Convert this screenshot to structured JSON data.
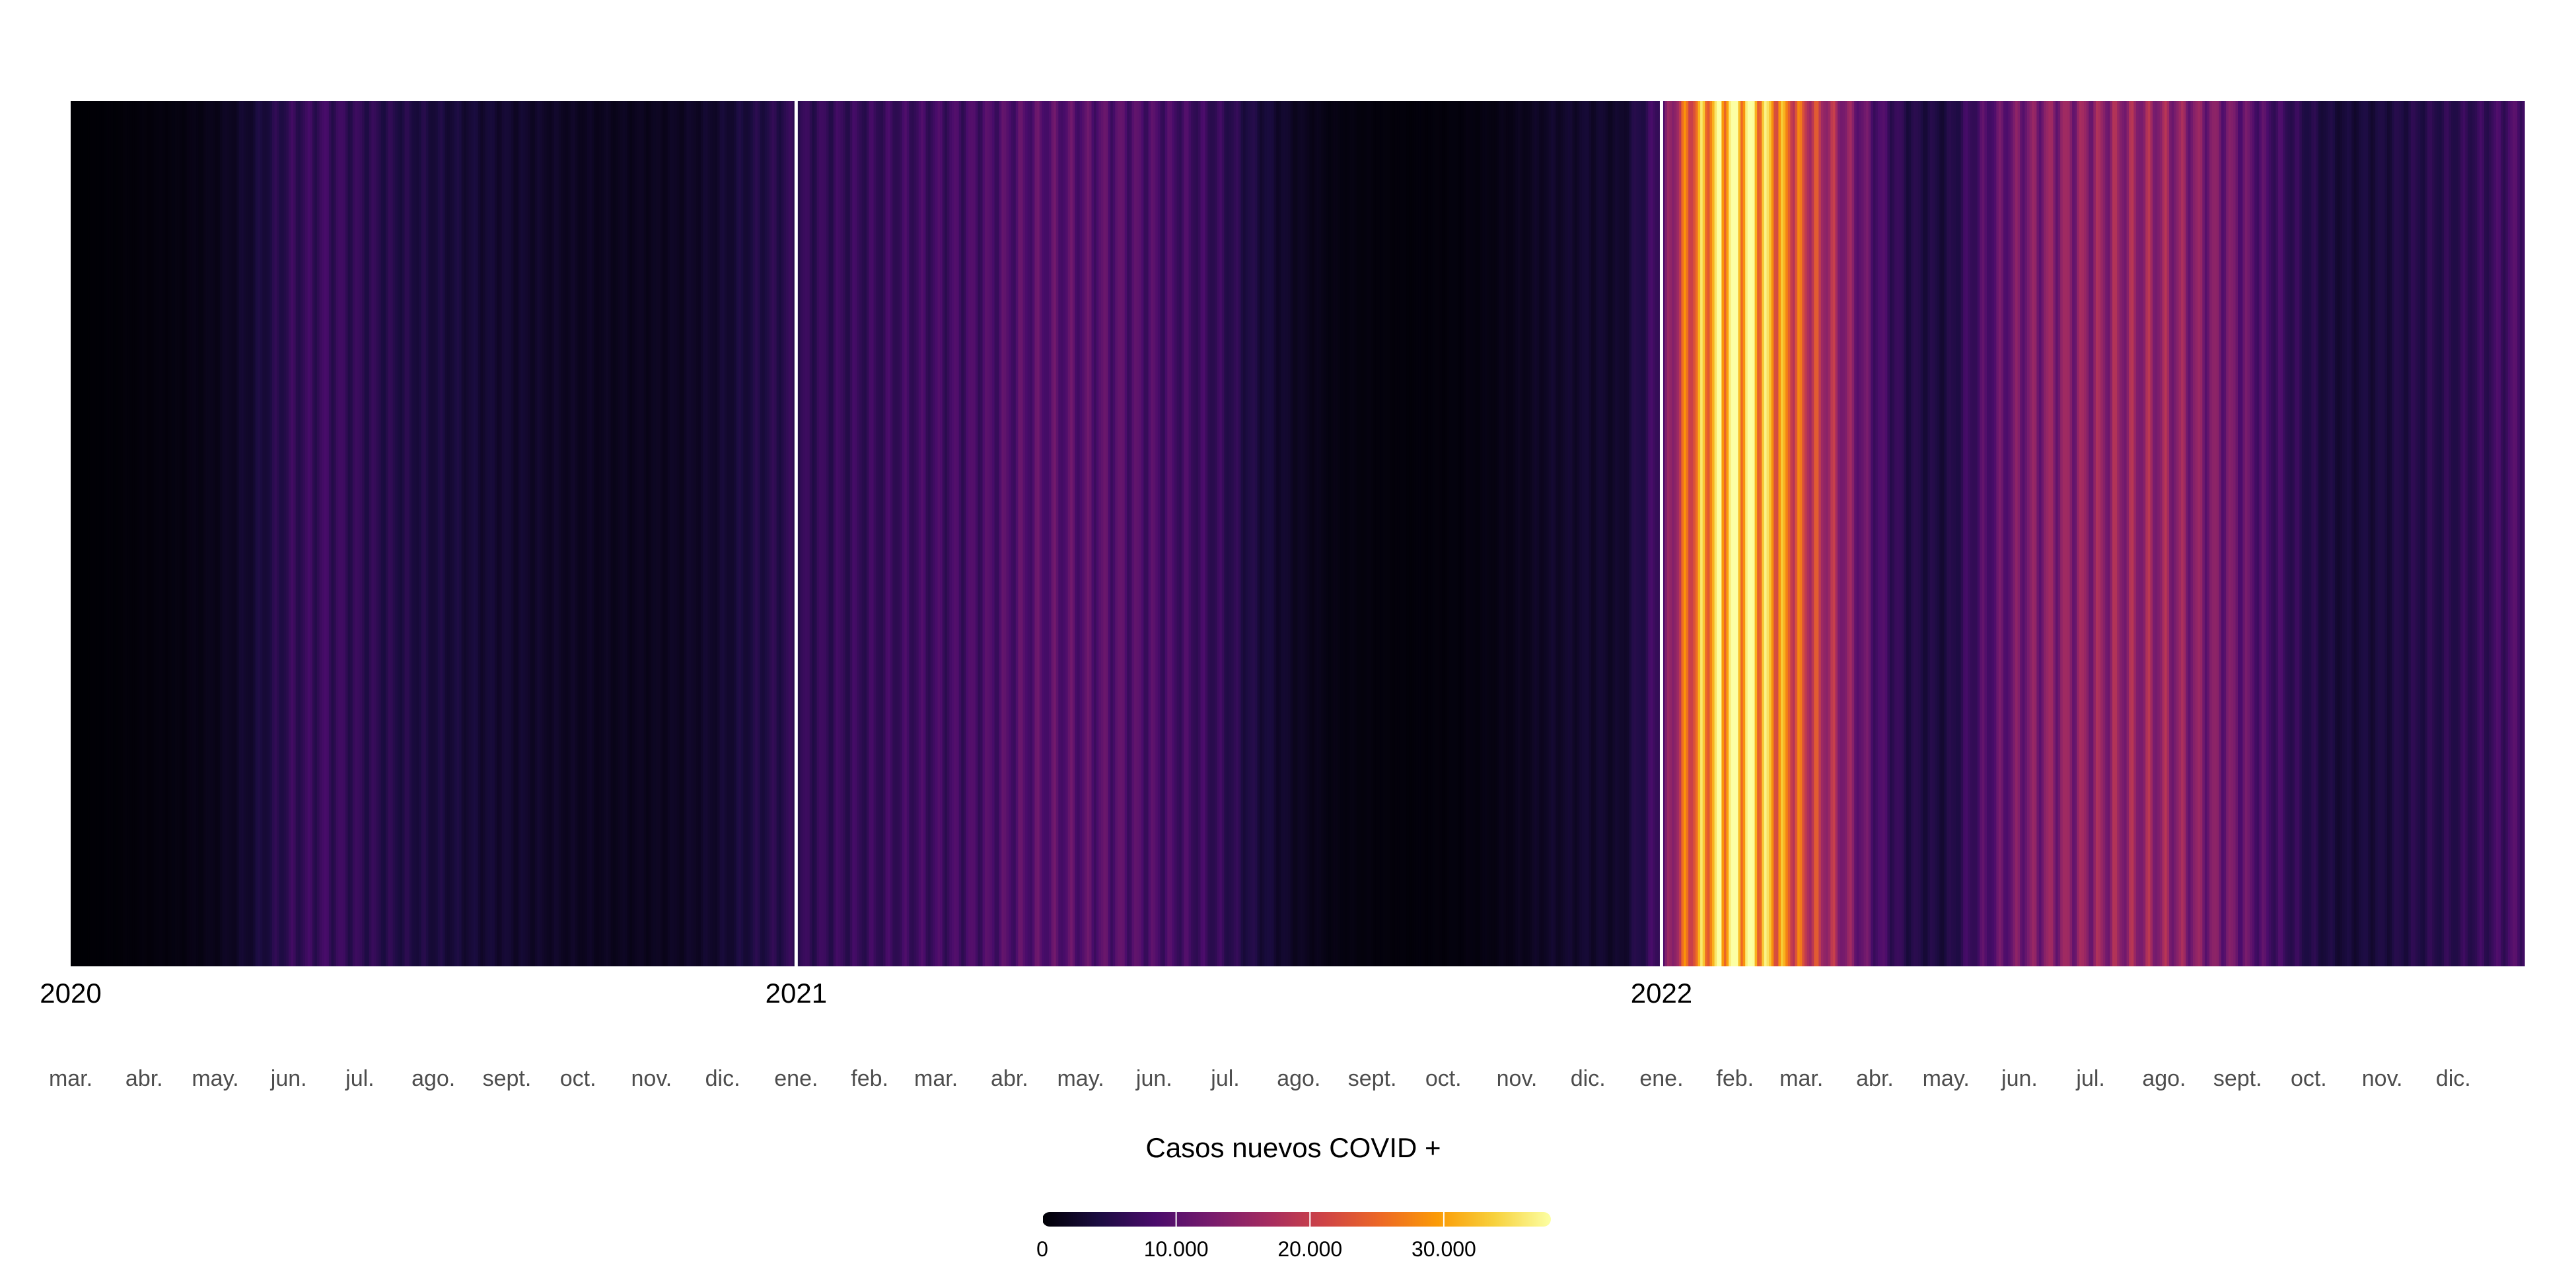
{
  "chart_data": {
    "type": "heatmap",
    "title": "",
    "xlabel": "",
    "ylabel": "",
    "x_start": "2020-03-01",
    "x_end": "2022-12-31",
    "year_labels": [
      {
        "label": "2020",
        "date": "2020-03-01"
      },
      {
        "label": "2021",
        "date": "2021-01-01"
      },
      {
        "label": "2022",
        "date": "2022-01-01"
      }
    ],
    "month_labels": [
      {
        "label": "mar.",
        "date": "2020-03-01"
      },
      {
        "label": "abr.",
        "date": "2020-04-01"
      },
      {
        "label": "may.",
        "date": "2020-05-01"
      },
      {
        "label": "jun.",
        "date": "2020-06-01"
      },
      {
        "label": "jul.",
        "date": "2020-07-01"
      },
      {
        "label": "ago.",
        "date": "2020-08-01"
      },
      {
        "label": "sept.",
        "date": "2020-09-01"
      },
      {
        "label": "oct.",
        "date": "2020-10-01"
      },
      {
        "label": "nov.",
        "date": "2020-11-01"
      },
      {
        "label": "dic.",
        "date": "2020-12-01"
      },
      {
        "label": "ene.",
        "date": "2021-01-01"
      },
      {
        "label": "feb.",
        "date": "2021-02-01"
      },
      {
        "label": "mar.",
        "date": "2021-03-01"
      },
      {
        "label": "abr.",
        "date": "2021-04-01"
      },
      {
        "label": "may.",
        "date": "2021-05-01"
      },
      {
        "label": "jun.",
        "date": "2021-06-01"
      },
      {
        "label": "jul.",
        "date": "2021-07-01"
      },
      {
        "label": "ago.",
        "date": "2021-08-01"
      },
      {
        "label": "sept.",
        "date": "2021-09-01"
      },
      {
        "label": "oct.",
        "date": "2021-10-01"
      },
      {
        "label": "nov.",
        "date": "2021-11-01"
      },
      {
        "label": "dic.",
        "date": "2021-12-01"
      },
      {
        "label": "ene.",
        "date": "2022-01-01"
      },
      {
        "label": "feb.",
        "date": "2022-02-01"
      },
      {
        "label": "mar.",
        "date": "2022-03-01"
      },
      {
        "label": "abr.",
        "date": "2022-04-01"
      },
      {
        "label": "may.",
        "date": "2022-05-01"
      },
      {
        "label": "jun.",
        "date": "2022-06-01"
      },
      {
        "label": "jul.",
        "date": "2022-07-01"
      },
      {
        "label": "ago.",
        "date": "2022-08-01"
      },
      {
        "label": "sept.",
        "date": "2022-09-01"
      },
      {
        "label": "oct.",
        "date": "2022-10-01"
      },
      {
        "label": "nov.",
        "date": "2022-11-01"
      },
      {
        "label": "dic.",
        "date": "2022-12-01"
      }
    ],
    "year_separators": [
      "2021-01-01",
      "2022-01-01"
    ],
    "color_scale": {
      "name": "inferno",
      "min": 0,
      "max": 38000,
      "title": "Casos nuevos COVID +",
      "ticks": [
        {
          "value": 0,
          "label": "0"
        },
        {
          "value": 10000,
          "label": "10.000"
        },
        {
          "value": 20000,
          "label": "20.000"
        },
        {
          "value": 30000,
          "label": "30.000"
        }
      ],
      "stops": [
        "#000004",
        "#1b0c41",
        "#4a0c6b",
        "#781c6d",
        "#a52c60",
        "#cf4446",
        "#ed6925",
        "#fb9b06",
        "#f7d13d",
        "#fcffa4"
      ]
    },
    "series": [
      {
        "date": [
          "2020-03-01",
          "2020-03-15",
          "2020-04-01",
          "2020-04-15",
          "2020-05-01",
          "2020-05-15",
          "2020-06-01",
          "2020-06-15",
          "2020-07-01",
          "2020-07-15",
          "2020-08-01",
          "2020-08-15",
          "2020-09-01",
          "2020-09-15",
          "2020-10-01",
          "2020-10-15",
          "2020-11-01",
          "2020-11-15",
          "2020-12-01",
          "2020-12-15",
          "2021-01-01",
          "2021-01-15",
          "2021-02-01",
          "2021-02-15",
          "2021-03-01",
          "2021-03-15",
          "2021-04-01",
          "2021-04-15",
          "2021-05-01",
          "2021-05-15",
          "2021-06-01",
          "2021-06-15",
          "2021-07-01",
          "2021-07-15",
          "2021-08-01",
          "2021-08-15",
          "2021-09-01",
          "2021-09-15",
          "2021-10-01",
          "2021-10-15",
          "2021-11-01",
          "2021-11-15",
          "2021-12-01",
          "2021-12-15",
          "2022-01-01",
          "2022-01-10",
          "2022-01-20",
          "2022-02-01",
          "2022-02-10",
          "2022-02-20",
          "2022-03-01",
          "2022-03-15",
          "2022-04-01",
          "2022-04-15",
          "2022-05-01",
          "2022-05-15",
          "2022-06-01",
          "2022-06-15",
          "2022-07-01",
          "2022-07-15",
          "2022-08-01",
          "2022-08-15",
          "2022-09-01",
          "2022-09-15",
          "2022-10-01",
          "2022-10-15",
          "2022-11-01",
          "2022-11-15",
          "2022-12-01",
          "2022-12-15",
          "2022-12-31"
        ],
        "cases": [
          0,
          200,
          500,
          800,
          1500,
          3000,
          6000,
          7000,
          6000,
          5000,
          4000,
          3500,
          3000,
          2500,
          2000,
          1800,
          1800,
          2200,
          3000,
          4500,
          6000,
          6500,
          6500,
          7000,
          7500,
          8000,
          9000,
          9500,
          9500,
          9500,
          8500,
          7500,
          6000,
          4000,
          2000,
          1000,
          600,
          400,
          500,
          800,
          1500,
          2500,
          3000,
          2500,
          8000,
          22000,
          30000,
          36000,
          33000,
          28000,
          22000,
          16000,
          9000,
          5000,
          4000,
          8000,
          12000,
          14000,
          14500,
          15000,
          15000,
          13500,
          11500,
          8000,
          5000,
          3500,
          4000,
          5000,
          5500,
          6500,
          9000
        ]
      }
    ]
  }
}
